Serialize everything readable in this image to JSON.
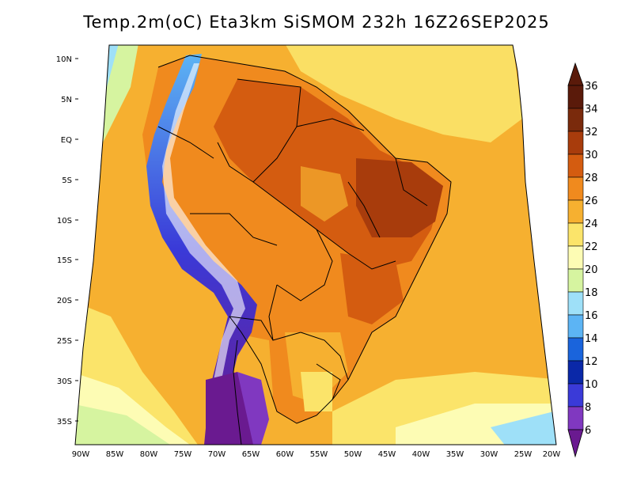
{
  "title": "Temp.2m(oC) Eta3km SiSMOM 232h 16Z26SEP2025",
  "map": {
    "variable": "2 m temperature",
    "units": "oC",
    "lat_labels": [
      "10N",
      "5N",
      "EQ",
      "5S",
      "10S",
      "15S",
      "20S",
      "25S",
      "30S",
      "35S"
    ],
    "lon_labels": [
      "90W",
      "85W",
      "80W",
      "75W",
      "70W",
      "65W",
      "60W",
      "55W",
      "50W",
      "45W",
      "40W",
      "35W",
      "30W",
      "25W",
      "20W"
    ]
  },
  "colorbar": {
    "labels": [
      "36",
      "34",
      "32",
      "30",
      "28",
      "26",
      "24",
      "22",
      "20",
      "18",
      "16",
      "14",
      "12",
      "10",
      "8",
      "6"
    ],
    "colors": [
      "#5a1a0a",
      "#7a2a0c",
      "#a83c0c",
      "#d45c10",
      "#f08a1e",
      "#f6b030",
      "#fbe46a",
      "#fdfcb4",
      "#d6f4a0",
      "#9ee0f8",
      "#5cb4f4",
      "#1a64dc",
      "#0a28a8",
      "#3a3ad8",
      "#8038c0",
      "#6a1a90"
    ]
  }
}
